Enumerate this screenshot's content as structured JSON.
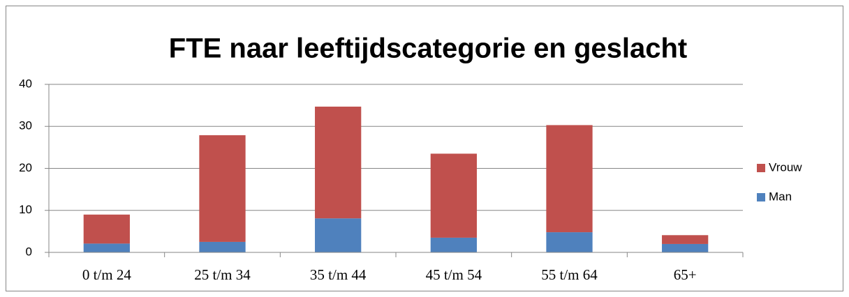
{
  "chart_data": {
    "type": "stacked-bar",
    "title": "FTE naar leeftijdscategorie en geslacht",
    "categories": [
      "0 t/m 24",
      "25 t/m 34",
      "35 t/m 44",
      "45 t/m 54",
      "55 t/m 64",
      "65+"
    ],
    "series": [
      {
        "name": "Man",
        "color": "#4f81bd",
        "values": [
          2.1,
          2.5,
          8.1,
          3.5,
          4.8,
          2.0
        ]
      },
      {
        "name": "Vrouw",
        "color": "#c0504d",
        "values": [
          6.9,
          25.4,
          26.6,
          20.0,
          25.5,
          2.1
        ]
      }
    ],
    "ylim": [
      0,
      40
    ],
    "yticks": [
      0,
      10,
      20,
      30,
      40
    ],
    "grid": true,
    "legend": "right"
  }
}
